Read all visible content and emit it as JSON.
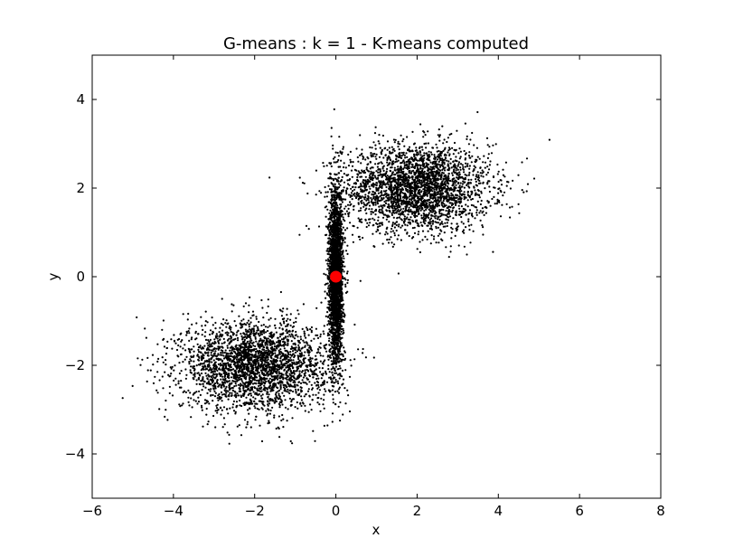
{
  "chart_data": {
    "type": "scatter",
    "title": "G-means : k = 1 - K-means computed",
    "xlabel": "x",
    "ylabel": "y",
    "xlim": [
      -6,
      8
    ],
    "ylim": [
      -5,
      5
    ],
    "xticks": [
      -6,
      -4,
      -2,
      0,
      2,
      4,
      6,
      8
    ],
    "yticks": [
      -4,
      -2,
      0,
      2,
      4
    ],
    "xtick_labels": [
      "−6",
      "−4",
      "−2",
      "0",
      "2",
      "4",
      "6",
      "8"
    ],
    "ytick_labels": [
      "−4",
      "−2",
      "0",
      "2",
      "4"
    ],
    "grid": false,
    "series": [
      {
        "kind": "gaussian-cluster",
        "center": [
          2.0,
          2.0
        ],
        "std": [
          0.9,
          0.5
        ],
        "count": 2800,
        "color": "#000000"
      },
      {
        "kind": "gaussian-cluster",
        "center": [
          -2.0,
          -2.0
        ],
        "std": [
          0.9,
          0.5
        ],
        "count": 2800,
        "color": "#000000"
      },
      {
        "kind": "gaussian-cluster",
        "center": [
          0.0,
          0.0
        ],
        "std": [
          0.09,
          1.0
        ],
        "count": 2500,
        "color": "#000000"
      }
    ],
    "centroids": [
      {
        "x": 0.0,
        "y": 0.0,
        "color": "#ff0000"
      }
    ]
  }
}
